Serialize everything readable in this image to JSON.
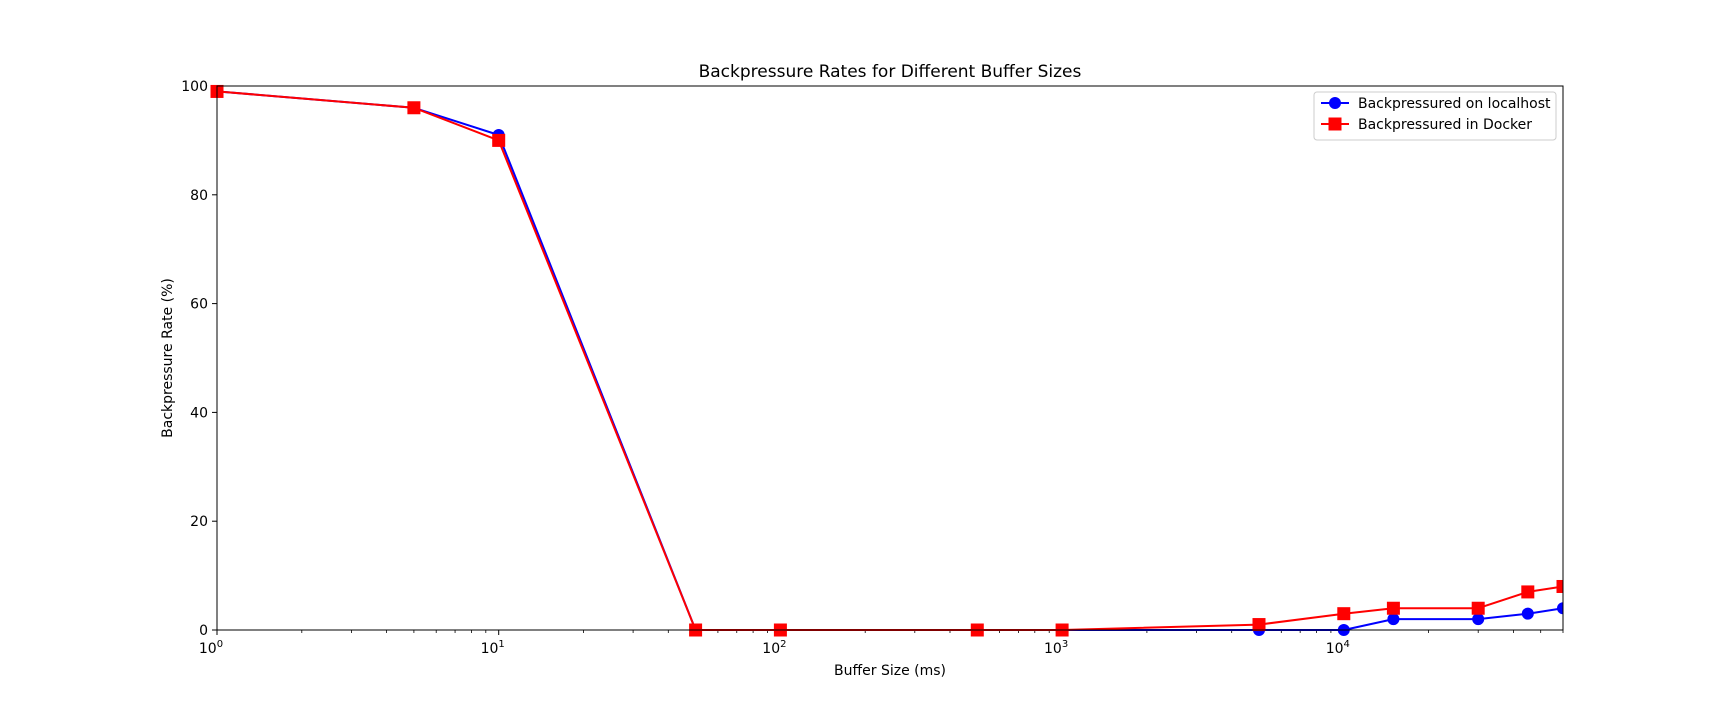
{
  "chart_data": {
    "type": "line",
    "title": "Backpressure Rates for Different Buffer Sizes",
    "xlabel": "Buffer Size (ms)",
    "ylabel": "Backpressure Rate (%)",
    "xscale": "log",
    "xlim": [
      1,
      60000
    ],
    "ylim": [
      0,
      100
    ],
    "grid": false,
    "legend_position": "top-right",
    "x_ticks": [
      {
        "value": 1,
        "base": "10",
        "exp": "0"
      },
      {
        "value": 10,
        "base": "10",
        "exp": "1"
      },
      {
        "value": 100,
        "base": "10",
        "exp": "2"
      },
      {
        "value": 1000,
        "base": "10",
        "exp": "3"
      },
      {
        "value": 10000,
        "base": "10",
        "exp": "4"
      }
    ],
    "y_ticks": [
      {
        "value": 0,
        "label": "0"
      },
      {
        "value": 20,
        "label": "20"
      },
      {
        "value": 40,
        "label": "40"
      },
      {
        "value": 60,
        "label": "60"
      },
      {
        "value": 80,
        "label": "80"
      },
      {
        "value": 100,
        "label": "100"
      }
    ],
    "series": [
      {
        "name": "Backpressured on localhost",
        "color": "#0000ff",
        "marker": "circle",
        "x": [
          1,
          5,
          10,
          50,
          100,
          500,
          1000,
          5000,
          10000,
          15000,
          30000,
          45000,
          60000
        ],
        "y": [
          99,
          96,
          91,
          0,
          0,
          0,
          0,
          0,
          0,
          2,
          2,
          3,
          4
        ]
      },
      {
        "name": "Backpressured in Docker",
        "color": "#ff0000",
        "marker": "square",
        "x": [
          1,
          5,
          10,
          50,
          100,
          500,
          1000,
          5000,
          10000,
          15000,
          30000,
          45000,
          60000
        ],
        "y": [
          99,
          96,
          90,
          0,
          0,
          0,
          0,
          1,
          3,
          4,
          4,
          7,
          8
        ]
      }
    ]
  }
}
